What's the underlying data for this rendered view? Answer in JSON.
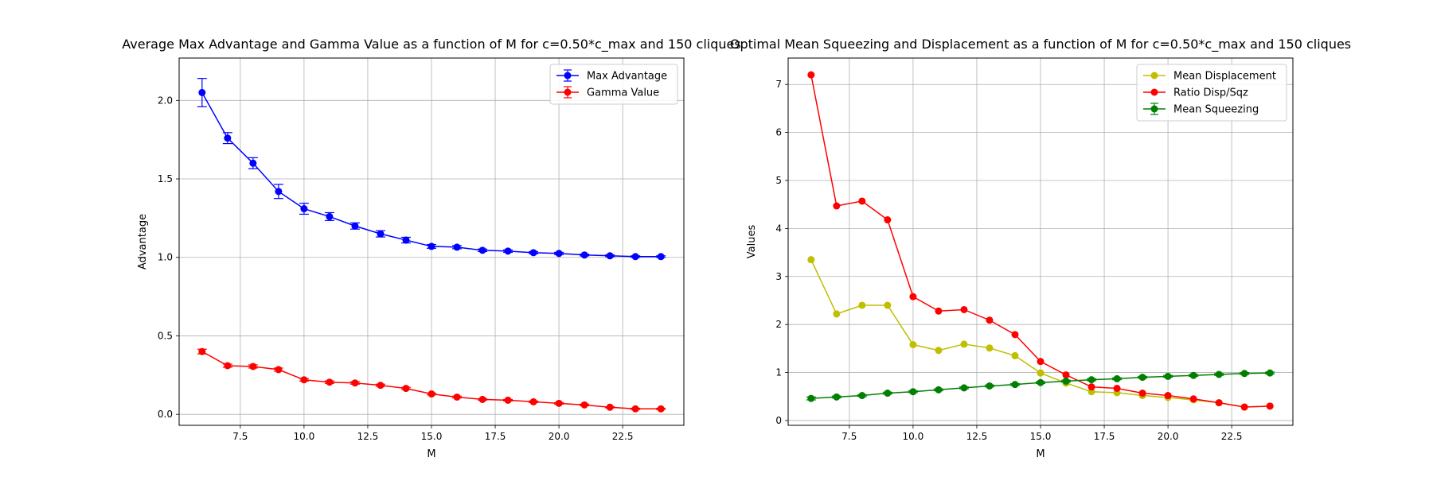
{
  "chart_data": [
    {
      "type": "line",
      "title": "Average Max Advantage and Gamma Value as a function of M for c=0.50*c_max and 150 cliques",
      "xlabel": "M",
      "ylabel": "Advantage",
      "xlim": [
        5.1,
        24.9
      ],
      "ylim": [
        -0.07,
        2.27
      ],
      "xticks": [
        7.5,
        10.0,
        12.5,
        15.0,
        17.5,
        20.0,
        22.5
      ],
      "xtick_labels": [
        "7.5",
        "10.0",
        "12.5",
        "15.0",
        "17.5",
        "20.0",
        "22.5"
      ],
      "yticks": [
        0.0,
        0.5,
        1.0,
        1.5,
        2.0
      ],
      "ytick_labels": [
        "0.0",
        "0.5",
        "1.0",
        "1.5",
        "2.0"
      ],
      "grid": true,
      "legend": "top-right",
      "x": [
        6,
        7,
        8,
        9,
        10,
        11,
        12,
        13,
        14,
        15,
        16,
        17,
        18,
        19,
        20,
        21,
        22,
        23,
        24
      ],
      "series": [
        {
          "name": "Max Advantage",
          "color": "#0000ff",
          "errorbars": true,
          "values": [
            2.05,
            1.76,
            1.6,
            1.42,
            1.31,
            1.26,
            1.2,
            1.15,
            1.11,
            1.07,
            1.065,
            1.045,
            1.04,
            1.03,
            1.025,
            1.015,
            1.01,
            1.005,
            1.005
          ],
          "errors": [
            0.09,
            0.035,
            0.035,
            0.045,
            0.035,
            0.025,
            0.02,
            0.02,
            0.018,
            0.012,
            0.01,
            0.008,
            0.008,
            0.007,
            0.007,
            0.006,
            0.006,
            0.005,
            0.005
          ]
        },
        {
          "name": "Gamma Value",
          "color": "#ff0000",
          "errorbars": true,
          "values": [
            0.4,
            0.31,
            0.305,
            0.285,
            0.22,
            0.205,
            0.2,
            0.185,
            0.165,
            0.13,
            0.11,
            0.095,
            0.09,
            0.08,
            0.07,
            0.06,
            0.045,
            0.035,
            0.035
          ],
          "errors": [
            0.015,
            0.01,
            0.01,
            0.01,
            0.008,
            0.008,
            0.008,
            0.007,
            0.007,
            0.006,
            0.006,
            0.005,
            0.005,
            0.005,
            0.005,
            0.005,
            0.004,
            0.004,
            0.004
          ]
        }
      ]
    },
    {
      "type": "line",
      "title": "Optimal Mean Squeezing and Displacement as a function of M for c=0.50*c_max and 150 cliques",
      "xlabel": "M",
      "ylabel": "Values",
      "xlim": [
        5.1,
        24.9
      ],
      "ylim": [
        -0.1,
        7.55
      ],
      "xticks": [
        7.5,
        10.0,
        12.5,
        15.0,
        17.5,
        20.0,
        22.5
      ],
      "xtick_labels": [
        "7.5",
        "10.0",
        "12.5",
        "15.0",
        "17.5",
        "20.0",
        "22.5"
      ],
      "yticks": [
        0,
        1,
        2,
        3,
        4,
        5,
        6,
        7
      ],
      "ytick_labels": [
        "0",
        "1",
        "2",
        "3",
        "4",
        "5",
        "6",
        "7"
      ],
      "grid": true,
      "legend": "top-right",
      "x": [
        6,
        7,
        8,
        9,
        10,
        11,
        12,
        13,
        14,
        15,
        16,
        17,
        18,
        19,
        20,
        21,
        22,
        23,
        24
      ],
      "series": [
        {
          "name": "Mean Displacement",
          "color": "#bfbf00",
          "errorbars": false,
          "values": [
            3.35,
            2.22,
            2.4,
            2.4,
            1.58,
            1.46,
            1.59,
            1.51,
            1.35,
            0.99,
            0.78,
            0.6,
            0.58,
            0.52,
            0.48,
            0.43,
            0.37,
            0.28,
            0.3
          ]
        },
        {
          "name": "Ratio Disp/Sqz",
          "color": "#ff0000",
          "errorbars": false,
          "values": [
            7.2,
            4.47,
            4.57,
            4.18,
            2.58,
            2.28,
            2.31,
            2.09,
            1.79,
            1.23,
            0.95,
            0.7,
            0.67,
            0.57,
            0.52,
            0.45,
            0.37,
            0.28,
            0.3
          ]
        },
        {
          "name": "Mean Squeezing",
          "color": "#008000",
          "errorbars": true,
          "values": [
            0.46,
            0.49,
            0.52,
            0.57,
            0.6,
            0.64,
            0.68,
            0.72,
            0.75,
            0.79,
            0.82,
            0.85,
            0.87,
            0.9,
            0.92,
            0.94,
            0.96,
            0.98,
            0.99
          ],
          "errors": [
            0.03,
            0.02,
            0.02,
            0.02,
            0.02,
            0.02,
            0.02,
            0.02,
            0.02,
            0.02,
            0.02,
            0.02,
            0.02,
            0.02,
            0.02,
            0.02,
            0.02,
            0.02,
            0.02
          ]
        }
      ]
    }
  ]
}
